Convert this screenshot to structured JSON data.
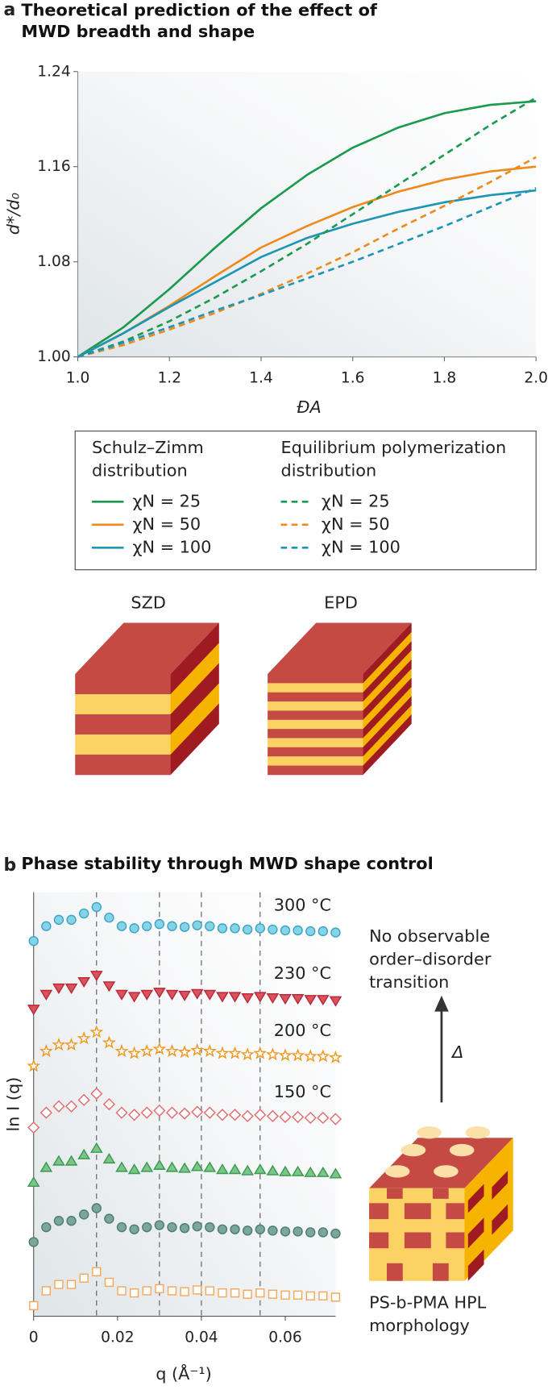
{
  "chart_data": [
    {
      "type": "line",
      "panel": "a",
      "title": "Theoretical prediction of the effect of MWD breadth and shape",
      "xlabel": "ĐA",
      "ylabel": "d*/d₀",
      "x": [
        1.0,
        1.1,
        1.2,
        1.3,
        1.4,
        1.5,
        1.6,
        1.7,
        1.8,
        1.9,
        2.0
      ],
      "xlim": [
        1.0,
        2.0
      ],
      "ylim": [
        1.0,
        1.24
      ],
      "xticks": [
        {
          "value": 1.0,
          "label": "1.0"
        },
        {
          "value": 1.2,
          "label": "1.2"
        },
        {
          "value": 1.4,
          "label": "1.4"
        },
        {
          "value": 1.6,
          "label": "1.6"
        },
        {
          "value": 1.8,
          "label": "1.8"
        },
        {
          "value": 2.0,
          "label": "2.0"
        }
      ],
      "yticks": [
        {
          "value": 1.0,
          "label": "1.00"
        },
        {
          "value": 1.08,
          "label": "1.08"
        },
        {
          "value": 1.16,
          "label": "1.16"
        },
        {
          "value": 1.24,
          "label": "1.24"
        }
      ],
      "legend_titles": [
        "Schulz–Zimm distribution",
        "Equilibrium polymerization distribution"
      ],
      "series": [
        {
          "name": "χN = 25",
          "color": "#1a9a4e",
          "dash": false,
          "legend_group": 0,
          "values": [
            1.0,
            1.025,
            1.057,
            1.092,
            1.125,
            1.153,
            1.176,
            1.193,
            1.205,
            1.212,
            1.215
          ]
        },
        {
          "name": "χN = 50",
          "color": "#ee8a1c",
          "dash": false,
          "legend_group": 0,
          "values": [
            1.0,
            1.02,
            1.043,
            1.068,
            1.092,
            1.11,
            1.126,
            1.139,
            1.149,
            1.156,
            1.16
          ]
        },
        {
          "name": "χN = 100",
          "color": "#1d95b5",
          "dash": false,
          "legend_group": 0,
          "values": [
            1.0,
            1.02,
            1.042,
            1.063,
            1.084,
            1.1,
            1.112,
            1.122,
            1.13,
            1.136,
            1.14
          ]
        },
        {
          "name": "χN = 25",
          "color": "#1a9a4e",
          "dash": true,
          "legend_group": 1,
          "values": [
            1.0,
            1.013,
            1.03,
            1.05,
            1.072,
            1.095,
            1.12,
            1.145,
            1.17,
            1.195,
            1.218
          ]
        },
        {
          "name": "χN = 50",
          "color": "#ee8a1c",
          "dash": true,
          "legend_group": 1,
          "values": [
            1.0,
            1.01,
            1.023,
            1.037,
            1.053,
            1.07,
            1.088,
            1.108,
            1.127,
            1.147,
            1.168
          ]
        },
        {
          "name": "χN = 100",
          "color": "#1d95b5",
          "dash": true,
          "legend_group": 1,
          "values": [
            1.0,
            1.012,
            1.025,
            1.039,
            1.052,
            1.066,
            1.08,
            1.095,
            1.11,
            1.126,
            1.142
          ]
        }
      ],
      "annotations": [
        "SZD",
        "EPD"
      ]
    },
    {
      "type": "scatter",
      "panel": "b",
      "title": "Phase stability through MWD shape control",
      "xlabel": "q (Å⁻¹)",
      "ylabel": "ln I (q)",
      "x": [
        0,
        0.003,
        0.006,
        0.009,
        0.012,
        0.015,
        0.018,
        0.021,
        0.024,
        0.027,
        0.03,
        0.033,
        0.036,
        0.039,
        0.042,
        0.045,
        0.048,
        0.051,
        0.054,
        0.057,
        0.06,
        0.063,
        0.066,
        0.069,
        0.072
      ],
      "xlim": [
        0,
        0.072
      ],
      "ylim": [
        0,
        10
      ],
      "xticks": [
        0,
        0.02,
        0.04,
        0.06
      ],
      "vlines": [
        0.015,
        0.03,
        0.04,
        0.054
      ],
      "series": [
        {
          "name": "300 °C",
          "marker": "circle",
          "filled": true,
          "color": "#3aa5c5",
          "fill": "#86d3e8",
          "values": [
            8.85,
            9.2,
            9.35,
            9.35,
            9.5,
            9.65,
            9.4,
            9.2,
            9.15,
            9.2,
            9.25,
            9.2,
            9.18,
            9.22,
            9.2,
            9.15,
            9.15,
            9.12,
            9.15,
            9.12,
            9.1,
            9.1,
            9.08,
            9.08,
            9.05
          ]
        },
        {
          "name": "230 °C",
          "marker": "triangle-down",
          "filled": true,
          "color": "#b8283a",
          "fill": "#d9535b",
          "values": [
            7.25,
            7.6,
            7.75,
            7.75,
            7.9,
            8.05,
            7.8,
            7.6,
            7.55,
            7.6,
            7.65,
            7.6,
            7.58,
            7.62,
            7.6,
            7.55,
            7.55,
            7.52,
            7.55,
            7.52,
            7.5,
            7.5,
            7.48,
            7.48,
            7.45
          ]
        },
        {
          "name": "200 °C",
          "marker": "star",
          "filled": false,
          "color": "#f0961e",
          "fill": "#fff",
          "values": [
            5.9,
            6.25,
            6.4,
            6.4,
            6.55,
            6.7,
            6.45,
            6.25,
            6.2,
            6.25,
            6.3,
            6.25,
            6.23,
            6.27,
            6.25,
            6.2,
            6.2,
            6.17,
            6.2,
            6.17,
            6.15,
            6.15,
            6.13,
            6.13,
            6.1
          ]
        },
        {
          "name": "150 °C",
          "marker": "diamond",
          "filled": false,
          "color": "#e06b6b",
          "fill": "#fff",
          "values": [
            4.45,
            4.8,
            4.95,
            4.95,
            5.1,
            5.25,
            5,
            4.8,
            4.75,
            4.8,
            4.85,
            4.8,
            4.78,
            4.82,
            4.8,
            4.75,
            4.75,
            4.72,
            4.75,
            4.72,
            4.7,
            4.7,
            4.68,
            4.68,
            4.65
          ]
        },
        {
          "marker": "triangle-up",
          "filled": true,
          "color": "#3a9a4e",
          "fill": "#7cc48a",
          "values": [
            3.15,
            3.5,
            3.65,
            3.65,
            3.8,
            3.95,
            3.7,
            3.5,
            3.45,
            3.5,
            3.55,
            3.5,
            3.48,
            3.52,
            3.5,
            3.45,
            3.45,
            3.42,
            3.45,
            3.42,
            3.4,
            3.4,
            3.38,
            3.38,
            3.35
          ]
        },
        {
          "marker": "circle",
          "filled": true,
          "color": "#4d7d70",
          "fill": "#7aa79a",
          "values": [
            1.75,
            2.1,
            2.25,
            2.25,
            2.4,
            2.55,
            2.3,
            2.1,
            2.05,
            2.1,
            2.15,
            2.1,
            2.08,
            2.12,
            2.1,
            2.05,
            2.05,
            2.02,
            2.05,
            2.02,
            2,
            2,
            1.98,
            1.98,
            1.95
          ]
        },
        {
          "marker": "square",
          "filled": false,
          "color": "#f5a85a",
          "fill": "#fff",
          "values": [
            0.25,
            0.6,
            0.75,
            0.75,
            0.9,
            1.05,
            0.8,
            0.6,
            0.55,
            0.6,
            0.65,
            0.6,
            0.58,
            0.62,
            0.6,
            0.55,
            0.55,
            0.52,
            0.55,
            0.52,
            0.5,
            0.5,
            0.48,
            0.48,
            0.45
          ]
        }
      ],
      "annotations": [
        "No observable order–disorder transition",
        "Δ",
        "PS-b-PMA HPL morphology"
      ]
    }
  ]
}
